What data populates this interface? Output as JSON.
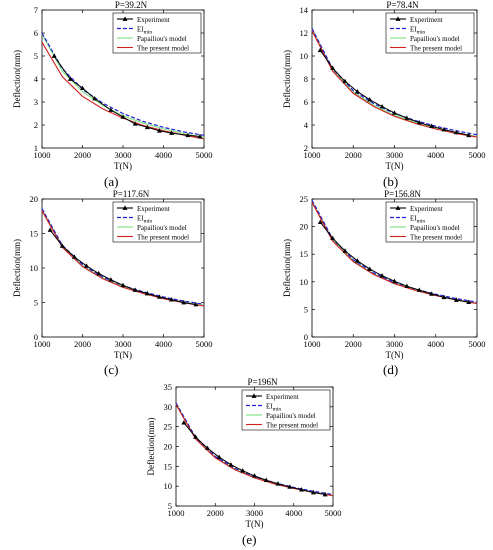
{
  "colors": {
    "experiment": "#000000",
    "ei_min": "#1f1fd6",
    "papailiou": "#7fe07f",
    "present": "#d02020"
  },
  "chart_data": [
    {
      "type": "line",
      "panel_label": "(a)",
      "title": "P=39.2N",
      "xlabel": "T(N)",
      "ylabel": "Deflection(mm)",
      "xlim": [
        1000,
        5000
      ],
      "ylim": [
        1,
        7
      ],
      "xticks": [
        1000,
        2000,
        3000,
        4000,
        5000
      ],
      "yticks": [
        1,
        2,
        3,
        4,
        5,
        6,
        7
      ],
      "legend": "top-right",
      "series": [
        {
          "name": "Experiment",
          "style": "line-triangle",
          "x": [
            1300,
            1700,
            2000,
            2300,
            2700,
            3000,
            3300,
            3600,
            3900,
            4200,
            4600,
            4900
          ],
          "y": [
            5.0,
            4.0,
            3.6,
            3.15,
            2.65,
            2.35,
            2.05,
            1.9,
            1.75,
            1.65,
            1.55,
            1.5
          ]
        },
        {
          "name": "EI_min",
          "style": "dashed",
          "x": [
            1000,
            1500,
            2000,
            2500,
            3000,
            3500,
            4000,
            4500,
            5000
          ],
          "y": [
            6.0,
            4.45,
            3.55,
            2.95,
            2.5,
            2.15,
            1.9,
            1.7,
            1.55
          ]
        },
        {
          "name": "Papailiou's model",
          "style": "solid",
          "x": [
            1000,
            1500,
            2000,
            2500,
            3000,
            3500,
            4000,
            4500,
            5000
          ],
          "y": [
            5.95,
            4.35,
            3.45,
            2.85,
            2.4,
            2.08,
            1.83,
            1.63,
            1.47
          ]
        },
        {
          "name": "The present model",
          "style": "solid",
          "x": [
            1000,
            1500,
            2000,
            2500,
            3000,
            3500,
            4000,
            4500,
            5000
          ],
          "y": [
            5.6,
            4.1,
            3.25,
            2.7,
            2.3,
            1.98,
            1.75,
            1.56,
            1.4
          ]
        }
      ]
    },
    {
      "type": "line",
      "panel_label": "(b)",
      "title": "P=78.4N",
      "xlabel": "T(N)",
      "ylabel": "Deflection(mm)",
      "xlim": [
        1000,
        5000
      ],
      "ylim": [
        2,
        14
      ],
      "xticks": [
        1000,
        2000,
        3000,
        4000,
        5000
      ],
      "yticks": [
        2,
        4,
        6,
        8,
        10,
        12,
        14
      ],
      "legend": "top-right",
      "series": [
        {
          "name": "Experiment",
          "style": "line-triangle",
          "x": [
            1200,
            1500,
            1800,
            2100,
            2400,
            2700,
            3000,
            3300,
            3600,
            3900,
            4200,
            4500,
            4800
          ],
          "y": [
            10.5,
            8.95,
            7.8,
            6.9,
            6.2,
            5.6,
            5.05,
            4.6,
            4.2,
            3.9,
            3.6,
            3.35,
            3.1
          ]
        },
        {
          "name": "EI_min",
          "style": "dashed",
          "x": [
            1000,
            1500,
            2000,
            2500,
            3000,
            3500,
            4000,
            4500,
            5000
          ],
          "y": [
            12.4,
            8.9,
            7.0,
            5.85,
            5.0,
            4.4,
            3.9,
            3.5,
            3.15
          ]
        },
        {
          "name": "Papailiou's model",
          "style": "solid",
          "x": [
            1000,
            1500,
            2000,
            2500,
            3000,
            3500,
            4000,
            4500,
            5000
          ],
          "y": [
            12.3,
            8.8,
            6.85,
            5.7,
            4.85,
            4.25,
            3.75,
            3.35,
            3.0
          ]
        },
        {
          "name": "The present model",
          "style": "solid",
          "x": [
            1000,
            1500,
            2000,
            2500,
            3000,
            3500,
            4000,
            4500,
            5000
          ],
          "y": [
            12.2,
            8.7,
            6.75,
            5.6,
            4.75,
            4.15,
            3.65,
            3.25,
            2.95
          ]
        }
      ]
    },
    {
      "type": "line",
      "panel_label": "(c)",
      "title": "P=117.6N",
      "xlabel": "T(N)",
      "ylabel": "Deflection(mm)",
      "xlim": [
        1000,
        5000
      ],
      "ylim": [
        0,
        20
      ],
      "xticks": [
        1000,
        2000,
        3000,
        4000,
        5000
      ],
      "yticks": [
        0,
        5,
        10,
        15,
        20
      ],
      "legend": "top-right",
      "series": [
        {
          "name": "Experiment",
          "style": "line-triangle",
          "x": [
            1200,
            1500,
            1800,
            2100,
            2400,
            2700,
            3000,
            3300,
            3600,
            3900,
            4200,
            4500,
            4800
          ],
          "y": [
            15.5,
            13.2,
            11.6,
            10.3,
            9.2,
            8.3,
            7.5,
            6.8,
            6.3,
            5.8,
            5.4,
            5.0,
            4.7
          ]
        },
        {
          "name": "EI_min",
          "style": "dashed",
          "x": [
            1000,
            1500,
            2000,
            2500,
            3000,
            3500,
            4000,
            4500,
            5000
          ],
          "y": [
            18.6,
            13.3,
            10.5,
            8.7,
            7.45,
            6.55,
            5.8,
            5.2,
            4.75
          ]
        },
        {
          "name": "Papailiou's model",
          "style": "solid",
          "x": [
            1000,
            1500,
            2000,
            2500,
            3000,
            3500,
            4000,
            4500,
            5000
          ],
          "y": [
            18.5,
            13.2,
            10.35,
            8.55,
            7.3,
            6.4,
            5.65,
            5.05,
            4.6
          ]
        },
        {
          "name": "The present model",
          "style": "solid",
          "x": [
            1000,
            1500,
            2000,
            2500,
            3000,
            3500,
            4000,
            4500,
            5000
          ],
          "y": [
            18.3,
            13.0,
            10.2,
            8.45,
            7.2,
            6.3,
            5.55,
            4.95,
            4.5
          ]
        }
      ]
    },
    {
      "type": "line",
      "panel_label": "(d)",
      "title": "P=156.8N",
      "xlabel": "T(N)",
      "ylabel": "Deflection(mm)",
      "xlim": [
        1000,
        5000
      ],
      "ylim": [
        0,
        25
      ],
      "xticks": [
        1000,
        2000,
        3000,
        4000,
        5000
      ],
      "yticks": [
        0,
        5,
        10,
        15,
        20,
        25
      ],
      "legend": "top-right",
      "series": [
        {
          "name": "Experiment",
          "style": "line-triangle",
          "x": [
            1200,
            1500,
            1800,
            2100,
            2400,
            2700,
            3000,
            3300,
            3600,
            3900,
            4200,
            4500,
            4800
          ],
          "y": [
            20.8,
            17.9,
            15.6,
            13.8,
            12.3,
            11.1,
            10.1,
            9.2,
            8.5,
            7.8,
            7.2,
            6.7,
            6.3
          ]
        },
        {
          "name": "EI_min",
          "style": "dashed",
          "x": [
            1000,
            1500,
            2000,
            2500,
            3000,
            3500,
            4000,
            4500,
            5000
          ],
          "y": [
            24.8,
            17.8,
            14.0,
            11.6,
            9.9,
            8.7,
            7.75,
            6.95,
            6.3
          ]
        },
        {
          "name": "Papailiou's model",
          "style": "solid",
          "x": [
            1000,
            1500,
            2000,
            2500,
            3000,
            3500,
            4000,
            4500,
            5000
          ],
          "y": [
            24.6,
            17.6,
            13.8,
            11.4,
            9.75,
            8.55,
            7.6,
            6.8,
            6.15
          ]
        },
        {
          "name": "The present model",
          "style": "solid",
          "x": [
            1000,
            1500,
            2000,
            2500,
            3000,
            3500,
            4000,
            4500,
            5000
          ],
          "y": [
            24.4,
            17.4,
            13.65,
            11.3,
            9.65,
            8.45,
            7.5,
            6.7,
            6.05
          ]
        }
      ]
    },
    {
      "type": "line",
      "panel_label": "(e)",
      "title": "P=196N",
      "xlabel": "T(N)",
      "ylabel": "Deflection(mm)",
      "xlim": [
        1000,
        5000
      ],
      "ylim": [
        5,
        35
      ],
      "xticks": [
        1000,
        2000,
        3000,
        4000,
        5000
      ],
      "yticks": [
        5,
        10,
        15,
        20,
        25,
        30,
        35
      ],
      "legend": "top-right",
      "series": [
        {
          "name": "Experiment",
          "style": "line-triangle",
          "x": [
            1200,
            1500,
            1800,
            2100,
            2400,
            2700,
            3000,
            3300,
            3600,
            3900,
            4200,
            4500,
            4800
          ],
          "y": [
            26.0,
            22.4,
            19.6,
            17.3,
            15.4,
            13.9,
            12.6,
            11.5,
            10.6,
            9.8,
            9.1,
            8.4,
            7.9
          ]
        },
        {
          "name": "EI_min",
          "style": "dashed",
          "x": [
            1000,
            1500,
            2000,
            2500,
            3000,
            3500,
            4000,
            4500,
            5000
          ],
          "y": [
            31.0,
            22.3,
            17.5,
            14.5,
            12.4,
            10.9,
            9.7,
            8.7,
            7.9
          ]
        },
        {
          "name": "Papailiou's model",
          "style": "solid",
          "x": [
            1000,
            1500,
            2000,
            2500,
            3000,
            3500,
            4000,
            4500,
            5000
          ],
          "y": [
            30.8,
            22.1,
            17.3,
            14.3,
            12.2,
            10.7,
            9.5,
            8.5,
            7.7
          ]
        },
        {
          "name": "The present model",
          "style": "solid",
          "x": [
            1000,
            1500,
            2000,
            2500,
            3000,
            3500,
            4000,
            4500,
            5000
          ],
          "y": [
            30.6,
            21.9,
            17.15,
            14.15,
            12.1,
            10.6,
            9.4,
            8.4,
            7.6
          ]
        }
      ]
    }
  ]
}
